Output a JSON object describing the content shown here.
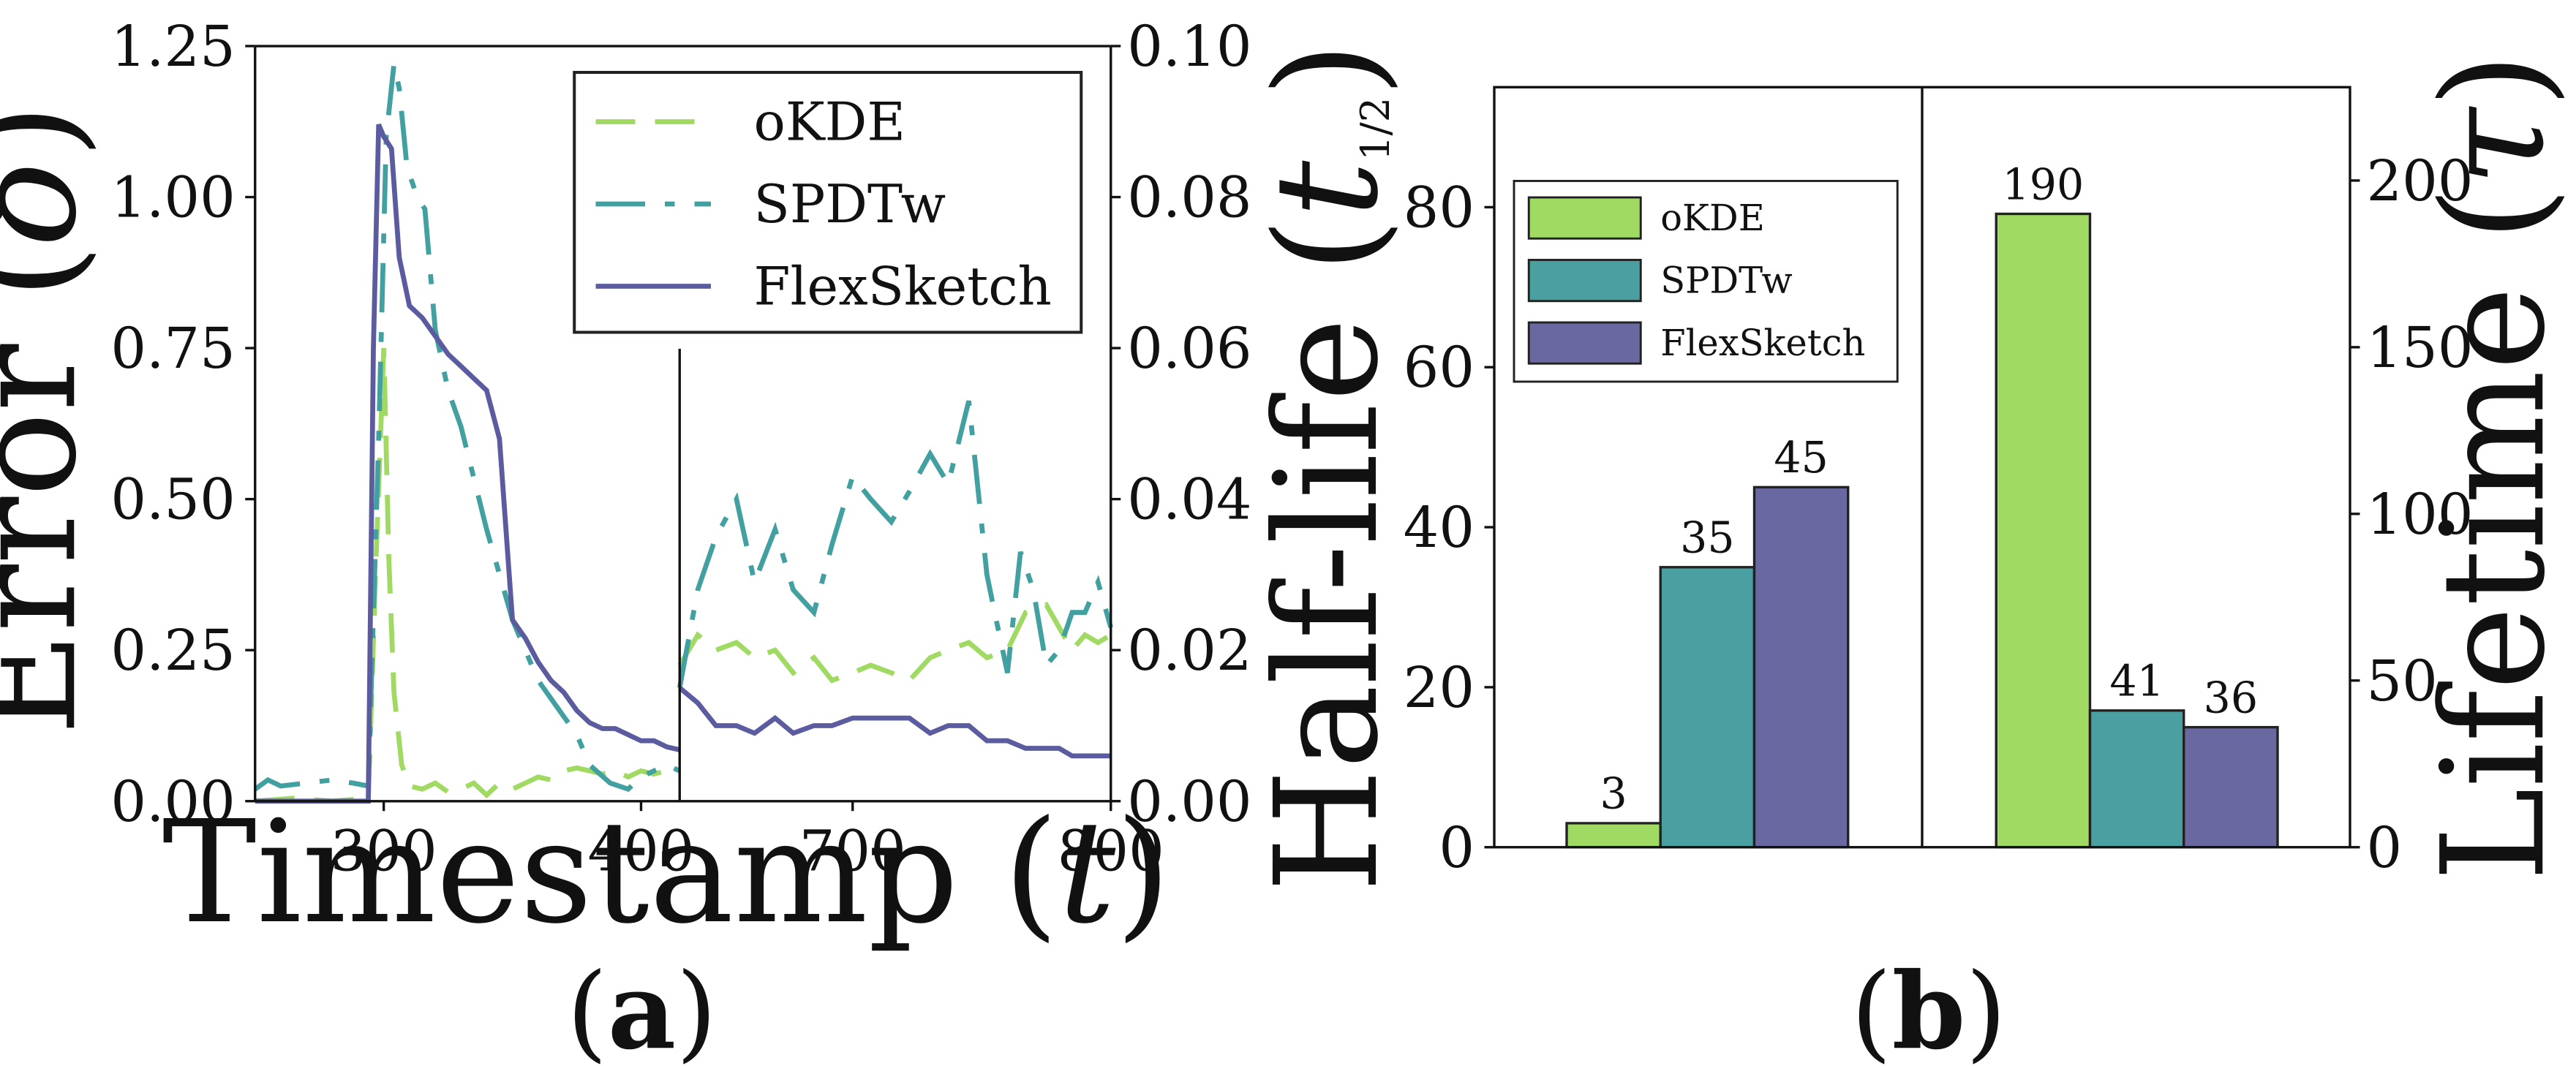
{
  "chart_data": [
    {
      "panel": "a",
      "type": "line",
      "caption_open": "(",
      "caption_letter": "a",
      "caption_close": ")",
      "ylabel_left": "Error (δ)",
      "xlabel": "Timestamp (t)",
      "left_axis": {
        "ylim": [
          0,
          1.25
        ],
        "yticks": [
          "0.00",
          "0.25",
          "0.50",
          "0.75",
          "1.00",
          "1.25"
        ],
        "yticks_values": [
          0,
          0.25,
          0.5,
          0.75,
          1.0,
          1.25
        ],
        "xlim": [
          250,
          415
        ],
        "xticks": [
          "300",
          "400"
        ],
        "xticks_values": [
          300,
          400
        ]
      },
      "right_axis": {
        "ylim": [
          0,
          0.1
        ],
        "yticks": [
          "0.00",
          "0.02",
          "0.04",
          "0.06",
          "0.08",
          "0.10"
        ],
        "yticks_values": [
          0,
          0.02,
          0.04,
          0.06,
          0.08,
          0.1
        ],
        "xlim": [
          633,
          800
        ],
        "xticks": [
          "700",
          "800"
        ],
        "xticks_values": [
          700,
          800
        ]
      },
      "legend": [
        "oKDE",
        "SPDTw",
        "FlexSketch"
      ],
      "series_colors": [
        "#a0da63",
        "#42a1a0",
        "#5b5b9f"
      ],
      "series": [
        {
          "name": "oKDE",
          "color": "#a0da63",
          "style": "dashed",
          "left_x": [
            250,
            265,
            280,
            294,
            297,
            300,
            302,
            304,
            307,
            310,
            315,
            320,
            325,
            330,
            335,
            340,
            345,
            350,
            355,
            360,
            365,
            370,
            375,
            380,
            385,
            390,
            395,
            400,
            405,
            410,
            415
          ],
          "left_y": [
            0.0,
            0.005,
            0.0,
            0.005,
            0.4,
            0.75,
            0.4,
            0.18,
            0.06,
            0.025,
            0.02,
            0.03,
            0.015,
            0.02,
            0.03,
            0.01,
            0.03,
            0.02,
            0.03,
            0.04,
            0.035,
            0.05,
            0.055,
            0.05,
            0.045,
            0.05,
            0.04,
            0.05,
            0.045,
            0.05,
            0.045
          ],
          "right_x": [
            633,
            640,
            647,
            655,
            662,
            670,
            677,
            685,
            692,
            700,
            707,
            715,
            722,
            730,
            737,
            745,
            752,
            760,
            767,
            775,
            780,
            785,
            790,
            795,
            800
          ],
          "right_y": [
            0.018,
            0.022,
            0.02,
            0.021,
            0.019,
            0.02,
            0.017,
            0.019,
            0.016,
            0.017,
            0.018,
            0.017,
            0.016,
            0.019,
            0.02,
            0.021,
            0.019,
            0.02,
            0.025,
            0.026,
            0.023,
            0.02,
            0.022,
            0.021,
            0.022
          ]
        },
        {
          "name": "SPDTw",
          "color": "#42a1a0",
          "style": "dashdot",
          "left_x": [
            250,
            255,
            260,
            270,
            280,
            288,
            294,
            298,
            301,
            304,
            306,
            309,
            313,
            316,
            320,
            325,
            330,
            340,
            350,
            355,
            360,
            370,
            375,
            380,
            388,
            395,
            400,
            405,
            410,
            415
          ],
          "left_y": [
            0.02,
            0.035,
            0.025,
            0.03,
            0.035,
            0.03,
            0.025,
            0.6,
            1.1,
            1.22,
            1.18,
            1.05,
            1.0,
            0.98,
            0.78,
            0.68,
            0.62,
            0.45,
            0.3,
            0.25,
            0.2,
            0.14,
            0.11,
            0.06,
            0.03,
            0.02,
            0.04,
            0.05,
            0.06,
            0.05
          ],
          "right_x": [
            633,
            640,
            647,
            655,
            662,
            670,
            677,
            685,
            692,
            700,
            707,
            715,
            722,
            730,
            737,
            745,
            752,
            755,
            760,
            765,
            770,
            775,
            780,
            785,
            790,
            795,
            800
          ],
          "right_y": [
            0.015,
            0.028,
            0.035,
            0.04,
            0.029,
            0.036,
            0.028,
            0.025,
            0.034,
            0.043,
            0.04,
            0.037,
            0.041,
            0.046,
            0.042,
            0.053,
            0.03,
            0.025,
            0.017,
            0.033,
            0.028,
            0.018,
            0.02,
            0.025,
            0.025,
            0.029,
            0.023
          ]
        },
        {
          "name": "FlexSketch",
          "color": "#5b5b9f",
          "style": "solid",
          "left_x": [
            250,
            270,
            294,
            296,
            298,
            300,
            303,
            306,
            310,
            315,
            320,
            325,
            330,
            335,
            340,
            345,
            350,
            355,
            360,
            365,
            370,
            375,
            380,
            385,
            390,
            400,
            405,
            410,
            415
          ],
          "left_y": [
            0.0,
            0.0,
            0.0,
            0.75,
            1.12,
            1.1,
            1.08,
            0.9,
            0.82,
            0.8,
            0.77,
            0.74,
            0.72,
            0.7,
            0.68,
            0.6,
            0.3,
            0.27,
            0.23,
            0.2,
            0.18,
            0.15,
            0.13,
            0.12,
            0.12,
            0.1,
            0.1,
            0.09,
            0.085
          ],
          "right_x": [
            633,
            640,
            647,
            655,
            662,
            670,
            677,
            685,
            692,
            700,
            707,
            715,
            722,
            730,
            737,
            745,
            752,
            760,
            767,
            775,
            780,
            785,
            790,
            795,
            800
          ],
          "right_y": [
            0.015,
            0.013,
            0.01,
            0.01,
            0.009,
            0.011,
            0.009,
            0.01,
            0.01,
            0.011,
            0.011,
            0.011,
            0.011,
            0.009,
            0.01,
            0.01,
            0.008,
            0.008,
            0.007,
            0.007,
            0.007,
            0.006,
            0.006,
            0.006,
            0.006
          ]
        }
      ]
    },
    {
      "panel": "b",
      "type": "bar",
      "caption_open": "(",
      "caption_letter": "b",
      "caption_close": ")",
      "ylabel_left": "Half-life (t1/2)",
      "ylabel_right": "Lifetime (τ)",
      "left_axis": {
        "ylim": [
          0,
          95
        ],
        "yticks": [
          "0",
          "20",
          "40",
          "60",
          "80"
        ],
        "yticks_values": [
          0,
          20,
          40,
          60,
          80
        ]
      },
      "right_axis": {
        "ylim": [
          0,
          228
        ],
        "yticks": [
          "0",
          "50",
          "100",
          "150",
          "200"
        ],
        "yticks_values": [
          0,
          50,
          100,
          150,
          200
        ]
      },
      "legend": [
        "oKDE",
        "SPDTw",
        "FlexSketch"
      ],
      "groups": [
        {
          "axis": "left",
          "values": [
            3,
            35,
            45
          ],
          "labels": [
            "3",
            "35",
            "45"
          ]
        },
        {
          "axis": "right",
          "values": [
            190,
            41,
            36
          ],
          "labels": [
            "190",
            "41",
            "36"
          ]
        }
      ],
      "series_colors": [
        "#a0da63",
        "#4a9fa1",
        "#6a68a0"
      ]
    }
  ]
}
